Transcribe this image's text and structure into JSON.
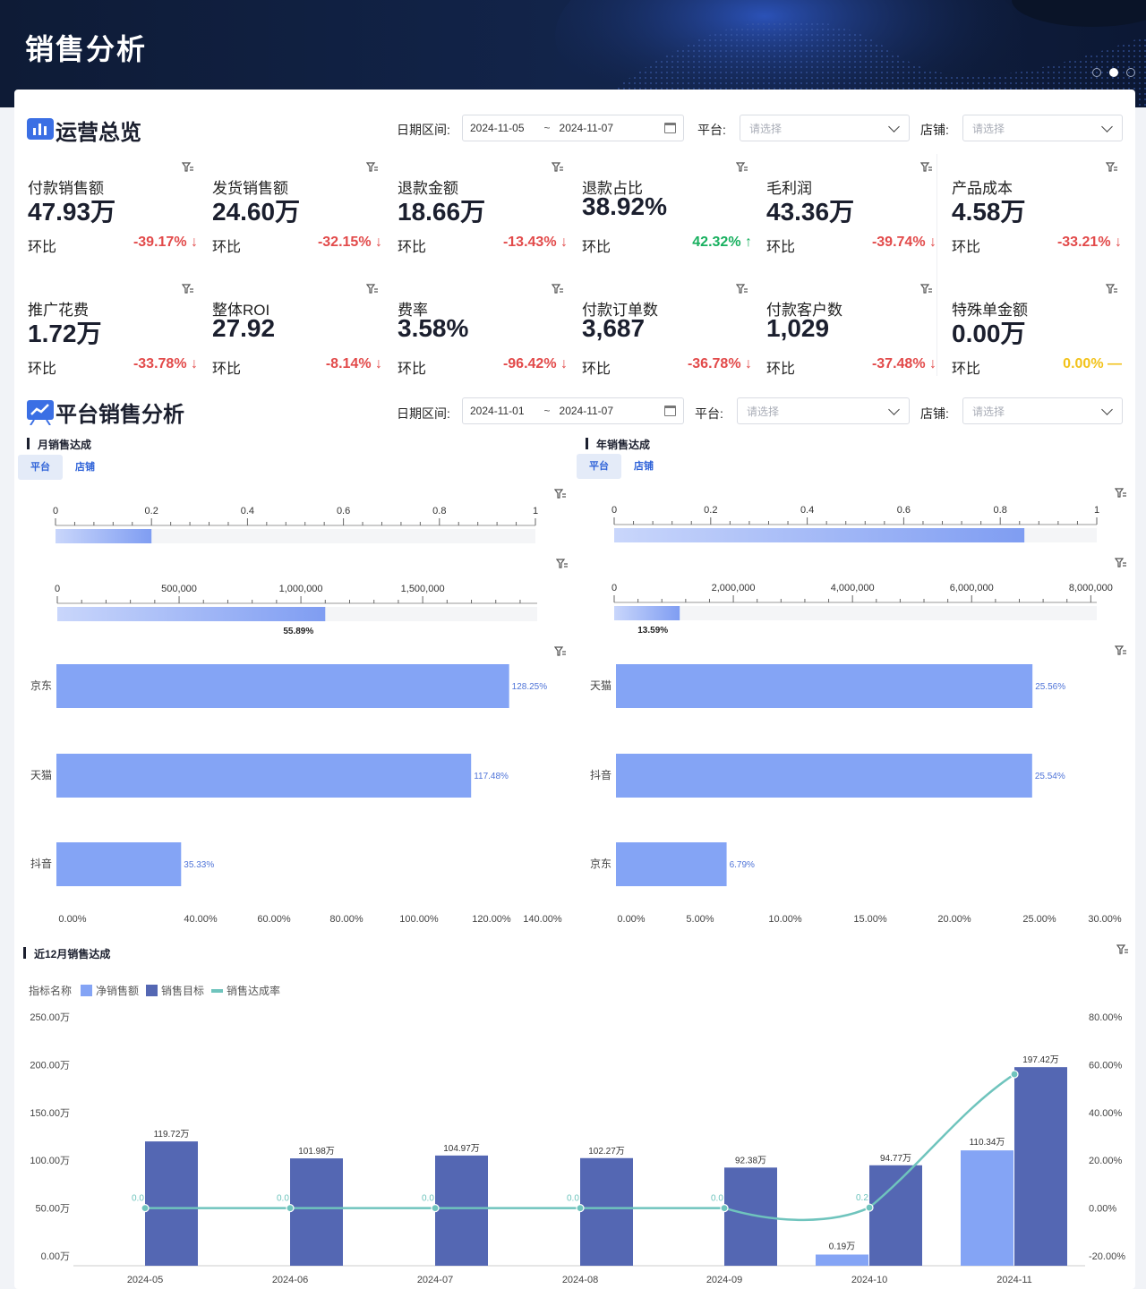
{
  "header": {
    "title": "销售分析",
    "pager_dots": 3,
    "active_dot": 2
  },
  "overview": {
    "title": "运营总览",
    "filters": {
      "date_label": "日期区间:",
      "date_start": "2024-11-05",
      "date_sep": "~",
      "date_end": "2024-11-07",
      "platform_label": "平台:",
      "platform_placeholder": "请选择",
      "store_label": "店铺:",
      "store_placeholder": "请选择"
    },
    "mom_label": "环比",
    "kpis": [
      {
        "label": "付款销售额",
        "value": "47.93万",
        "mom": "-39.17%",
        "arrow": "↓",
        "trend": "down"
      },
      {
        "label": "发货销售额",
        "value": "24.60万",
        "mom": "-32.15%",
        "arrow": "↓",
        "trend": "down"
      },
      {
        "label": "退款金额",
        "value": "18.66万",
        "mom": "-13.43%",
        "arrow": "↓",
        "trend": "down"
      },
      {
        "label": "退款占比",
        "value": "38.92%",
        "mom": "42.32%",
        "arrow": "↑",
        "trend": "up"
      },
      {
        "label": "毛利润",
        "value": "43.36万",
        "mom": "-39.74%",
        "arrow": "↓",
        "trend": "down"
      },
      {
        "label": "产品成本",
        "value": "4.58万",
        "mom": "-33.21%",
        "arrow": "↓",
        "trend": "down"
      },
      {
        "label": "推广花费",
        "value": "1.72万",
        "mom": "-33.78%",
        "arrow": "↓",
        "trend": "down"
      },
      {
        "label": "整体ROI",
        "value": "27.92",
        "mom": "-8.14%",
        "arrow": "↓",
        "trend": "down"
      },
      {
        "label": "费率",
        "value": "3.58%",
        "mom": "-96.42%",
        "arrow": "↓",
        "trend": "down"
      },
      {
        "label": "付款订单数",
        "value": "3,687",
        "mom": "-36.78%",
        "arrow": "↓",
        "trend": "down"
      },
      {
        "label": "付款客户数",
        "value": "1,029",
        "mom": "-37.48%",
        "arrow": "↓",
        "trend": "down"
      },
      {
        "label": "特殊单金额",
        "value": "0.00万",
        "mom": "0.00%",
        "arrow": "—",
        "trend": "flat"
      }
    ]
  },
  "platform": {
    "title": "平台销售分析",
    "filters": {
      "date_label": "日期区间:",
      "date_start": "2024-11-01",
      "date_sep": "~",
      "date_end": "2024-11-07",
      "platform_label": "平台:",
      "platform_placeholder": "请选择",
      "store_label": "店铺:",
      "store_placeholder": "请选择"
    },
    "monthly": {
      "title": "月销售达成",
      "tabs": [
        "平台",
        "店铺"
      ],
      "gauge_rate": {
        "ticks": [
          "0",
          "0.2",
          "0.4",
          "0.6",
          "0.8",
          "1"
        ],
        "value": 0.2,
        "max": 1
      },
      "gauge_amount": {
        "ticks": [
          "0",
          "500,000",
          "1,000,000",
          "1,500,000"
        ],
        "value": 1100000,
        "max": 1970000,
        "label": "55.89%"
      },
      "bars": {
        "categories": [
          "京东",
          "天猫",
          "抖音"
        ],
        "values": [
          128.25,
          117.48,
          35.33
        ],
        "labels": [
          "128.25%",
          "117.48%",
          "35.33%"
        ],
        "axis": [
          "0.00%",
          "40.00%",
          "60.00%",
          "80.00%",
          "100.00%",
          "120.00%",
          "140.00%"
        ],
        "max": 140
      }
    },
    "yearly": {
      "title": "年销售达成",
      "tabs": [
        "平台",
        "店铺"
      ],
      "gauge_rate": {
        "ticks": [
          "0",
          "0.2",
          "0.4",
          "0.6",
          "0.8",
          "1"
        ],
        "value": 0.85,
        "max": 1
      },
      "gauge_amount": {
        "ticks": [
          "0",
          "2,000,000",
          "4,000,000",
          "6,000,000",
          "8,000,000"
        ],
        "value": 1100000,
        "max": 8100000,
        "label": "13.59%"
      },
      "bars": {
        "categories": [
          "天猫",
          "抖音",
          "京东"
        ],
        "values": [
          25.56,
          25.54,
          6.79
        ],
        "labels": [
          "25.56%",
          "25.54%",
          "6.79%"
        ],
        "axis": [
          "0.00%",
          "5.00%",
          "10.00%",
          "15.00%",
          "20.00%",
          "25.00%",
          "30.00%"
        ],
        "max": 30
      }
    }
  },
  "trend": {
    "title": "近12月销售达成",
    "legend_title": "指标名称",
    "legend": [
      {
        "name": "净销售额",
        "color": "#84a4f5"
      },
      {
        "name": "销售目标",
        "color": "#5467b3"
      },
      {
        "name": "销售达成率",
        "color": "#6fc4bd"
      }
    ]
  },
  "chart_data": {
    "type": "bar",
    "categories": [
      "2024-05",
      "2024-06",
      "2024-07",
      "2024-08",
      "2024-09",
      "2024-10",
      "2024-11"
    ],
    "series": [
      {
        "name": "净销售额",
        "values": [
          0,
          0,
          0,
          0,
          0,
          0.19,
          110.34
        ],
        "labels": [
          "",
          "",
          "",
          "",
          "",
          "0.19万",
          "110.34万"
        ]
      },
      {
        "name": "销售目标",
        "values": [
          119.72,
          101.98,
          104.97,
          102.27,
          92.38,
          94.77,
          197.42
        ],
        "labels": [
          "119.72万",
          "101.98万",
          "104.97万",
          "102.27万",
          "92.38万",
          "94.77万",
          "197.42万"
        ]
      },
      {
        "name": "销售达成率",
        "axis": "right",
        "values": [
          0,
          0,
          0,
          0,
          0,
          0.2,
          56
        ],
        "labels": [
          "0.0",
          "0.0",
          "0.0",
          "0.0",
          "0.0",
          "0.2",
          ""
        ]
      }
    ],
    "y_left_ticks": [
      "250.00万",
      "200.00万",
      "150.00万",
      "100.00万",
      "50.00万",
      "0.00万"
    ],
    "y_right_ticks": [
      "80.00%",
      "60.00%",
      "40.00%",
      "20.00%",
      "0.00%",
      "-20.00%"
    ],
    "ylim_left": [
      0,
      250
    ],
    "ylim_right": [
      -20,
      80
    ]
  }
}
